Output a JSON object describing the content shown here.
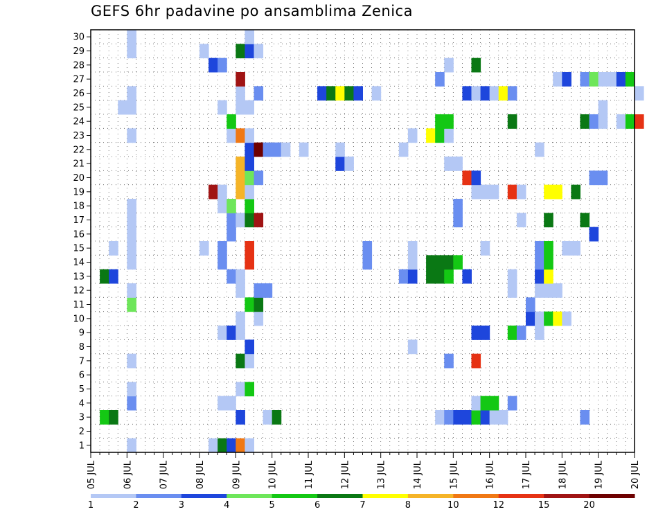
{
  "chart_data": {
    "type": "heatmap",
    "title": "GEFS 6hr padavine po ansamblima Zenica",
    "xlabel": "",
    "ylabel": "",
    "x_tick_labels": [
      "05 JUL",
      "06 JUL",
      "07 JUL",
      "08 JUL",
      "09 JUL",
      "10 JUL",
      "11 JUL",
      "12 JUL",
      "13 JUL",
      "14 JUL",
      "15 JUL",
      "16 JUL",
      "17 JUL",
      "18 JUL",
      "19 JUL",
      "20 JUL"
    ],
    "x_range": [
      "05 JUL 00h",
      "20 JUL 00h"
    ],
    "time_step_hours": 6,
    "y_tick_labels": [
      "1",
      "2",
      "3",
      "4",
      "5",
      "6",
      "7",
      "8",
      "9",
      "10",
      "11",
      "12",
      "13",
      "14",
      "15",
      "16",
      "17",
      "18",
      "19",
      "20",
      "21",
      "22",
      "23",
      "24",
      "25",
      "26",
      "27",
      "28",
      "29",
      "30"
    ],
    "y_range": [
      1,
      30
    ],
    "grid": "dotted",
    "colorbar": {
      "labels": [
        "1",
        "2",
        "3",
        "4",
        "5",
        "6",
        "7",
        "8",
        "10",
        "12",
        "15",
        "20"
      ],
      "bins": [
        {
          "from": 1,
          "to": 2,
          "color": "#b4c8f5"
        },
        {
          "from": 2,
          "to": 3,
          "color": "#6a8ef0"
        },
        {
          "from": 3,
          "to": 4,
          "color": "#1e46dc"
        },
        {
          "from": 4,
          "to": 5,
          "color": "#6ee65a"
        },
        {
          "from": 5,
          "to": 6,
          "color": "#14c814"
        },
        {
          "from": 6,
          "to": 7,
          "color": "#0a7814"
        },
        {
          "from": 7,
          "to": 8,
          "color": "#ffff00"
        },
        {
          "from": 8,
          "to": 10,
          "color": "#f5b428"
        },
        {
          "from": 10,
          "to": 12,
          "color": "#f07814"
        },
        {
          "from": 12,
          "to": 15,
          "color": "#e63214"
        },
        {
          "from": 15,
          "to": 20,
          "color": "#a01414"
        },
        {
          "from": 20,
          "to": null,
          "color": "#6e0000"
        }
      ]
    },
    "cells_note": "member = ensemble member (y), t = 6-hour step index from 05 JUL 00h, c = colour bin index (0 = 1-2 ... 11 = >20)",
    "cells": [
      [
        1,
        4,
        0
      ],
      [
        1,
        13,
        0
      ],
      [
        1,
        14,
        5
      ],
      [
        1,
        15,
        2
      ],
      [
        1,
        16,
        8
      ],
      [
        1,
        17,
        0
      ],
      [
        3,
        1,
        4
      ],
      [
        3,
        2,
        5
      ],
      [
        3,
        16,
        2
      ],
      [
        3,
        19,
        0
      ],
      [
        3,
        20,
        5
      ],
      [
        3,
        38,
        0
      ],
      [
        3,
        39,
        1
      ],
      [
        3,
        40,
        2
      ],
      [
        3,
        41,
        2
      ],
      [
        3,
        42,
        4
      ],
      [
        3,
        43,
        2
      ],
      [
        3,
        44,
        0
      ],
      [
        3,
        45,
        0
      ],
      [
        3,
        54,
        1
      ],
      [
        4,
        4,
        1
      ],
      [
        4,
        14,
        0
      ],
      [
        4,
        15,
        0
      ],
      [
        4,
        42,
        0
      ],
      [
        4,
        43,
        4
      ],
      [
        4,
        44,
        4
      ],
      [
        4,
        46,
        1
      ],
      [
        5,
        4,
        0
      ],
      [
        5,
        16,
        0
      ],
      [
        5,
        17,
        4
      ],
      [
        7,
        4,
        0
      ],
      [
        7,
        16,
        5
      ],
      [
        7,
        17,
        0
      ],
      [
        7,
        39,
        1
      ],
      [
        7,
        42,
        9
      ],
      [
        8,
        17,
        2
      ],
      [
        8,
        35,
        0
      ],
      [
        9,
        14,
        0
      ],
      [
        9,
        15,
        2
      ],
      [
        9,
        16,
        0
      ],
      [
        9,
        42,
        2
      ],
      [
        9,
        43,
        2
      ],
      [
        9,
        46,
        4
      ],
      [
        9,
        47,
        1
      ],
      [
        9,
        49,
        0
      ],
      [
        10,
        16,
        0
      ],
      [
        10,
        18,
        0
      ],
      [
        10,
        48,
        2
      ],
      [
        10,
        49,
        0
      ],
      [
        10,
        50,
        4
      ],
      [
        10,
        51,
        6
      ],
      [
        10,
        52,
        0
      ],
      [
        11,
        4,
        3
      ],
      [
        11,
        17,
        4
      ],
      [
        11,
        18,
        5
      ],
      [
        11,
        48,
        1
      ],
      [
        12,
        4,
        0
      ],
      [
        12,
        16,
        0
      ],
      [
        12,
        18,
        1
      ],
      [
        12,
        19,
        1
      ],
      [
        12,
        46,
        0
      ],
      [
        12,
        49,
        0
      ],
      [
        12,
        50,
        0
      ],
      [
        12,
        51,
        0
      ],
      [
        13,
        1,
        5
      ],
      [
        13,
        2,
        2
      ],
      [
        13,
        15,
        1
      ],
      [
        13,
        16,
        0
      ],
      [
        13,
        34,
        1
      ],
      [
        13,
        35,
        2
      ],
      [
        13,
        37,
        5
      ],
      [
        13,
        38,
        5
      ],
      [
        13,
        39,
        4
      ],
      [
        13,
        41,
        2
      ],
      [
        13,
        46,
        0
      ],
      [
        13,
        49,
        2
      ],
      [
        13,
        50,
        6
      ],
      [
        14,
        4,
        0
      ],
      [
        14,
        14,
        1
      ],
      [
        14,
        17,
        9
      ],
      [
        14,
        30,
        1
      ],
      [
        14,
        35,
        0
      ],
      [
        14,
        37,
        5
      ],
      [
        14,
        38,
        5
      ],
      [
        14,
        39,
        5
      ],
      [
        14,
        40,
        4
      ],
      [
        14,
        49,
        1
      ],
      [
        14,
        50,
        4
      ],
      [
        15,
        2,
        0
      ],
      [
        15,
        4,
        0
      ],
      [
        15,
        12,
        0
      ],
      [
        15,
        14,
        1
      ],
      [
        15,
        17,
        9
      ],
      [
        15,
        30,
        1
      ],
      [
        15,
        35,
        0
      ],
      [
        15,
        43,
        0
      ],
      [
        15,
        49,
        1
      ],
      [
        15,
        50,
        4
      ],
      [
        15,
        52,
        0
      ],
      [
        15,
        53,
        0
      ],
      [
        16,
        4,
        0
      ],
      [
        16,
        15,
        1
      ],
      [
        16,
        55,
        2
      ],
      [
        17,
        4,
        0
      ],
      [
        17,
        15,
        1
      ],
      [
        17,
        16,
        0
      ],
      [
        17,
        17,
        5
      ],
      [
        17,
        18,
        10
      ],
      [
        17,
        40,
        1
      ],
      [
        17,
        47,
        0
      ],
      [
        17,
        50,
        5
      ],
      [
        17,
        54,
        5
      ],
      [
        18,
        4,
        0
      ],
      [
        18,
        14,
        0
      ],
      [
        18,
        15,
        3
      ],
      [
        18,
        17,
        4
      ],
      [
        18,
        40,
        1
      ],
      [
        19,
        13,
        10
      ],
      [
        19,
        14,
        0
      ],
      [
        19,
        16,
        7
      ],
      [
        19,
        17,
        0
      ],
      [
        19,
        42,
        0
      ],
      [
        19,
        43,
        0
      ],
      [
        19,
        44,
        0
      ],
      [
        19,
        46,
        9
      ],
      [
        19,
        47,
        0
      ],
      [
        19,
        50,
        6
      ],
      [
        19,
        51,
        6
      ],
      [
        19,
        53,
        5
      ],
      [
        20,
        16,
        7
      ],
      [
        20,
        17,
        3
      ],
      [
        20,
        18,
        1
      ],
      [
        20,
        41,
        9
      ],
      [
        20,
        42,
        2
      ],
      [
        20,
        55,
        1
      ],
      [
        20,
        56,
        1
      ],
      [
        21,
        16,
        7
      ],
      [
        21,
        17,
        2
      ],
      [
        21,
        39,
        0
      ],
      [
        21,
        40,
        0
      ],
      [
        21,
        27,
        2
      ],
      [
        21,
        28,
        0
      ],
      [
        22,
        17,
        2
      ],
      [
        22,
        18,
        11
      ],
      [
        22,
        19,
        1
      ],
      [
        22,
        20,
        1
      ],
      [
        22,
        21,
        0
      ],
      [
        22,
        23,
        0
      ],
      [
        22,
        27,
        0
      ],
      [
        22,
        34,
        0
      ],
      [
        22,
        49,
        0
      ],
      [
        23,
        4,
        0
      ],
      [
        23,
        15,
        0
      ],
      [
        23,
        16,
        8
      ],
      [
        23,
        17,
        0
      ],
      [
        23,
        35,
        0
      ],
      [
        23,
        37,
        6
      ],
      [
        23,
        38,
        4
      ],
      [
        23,
        39,
        0
      ],
      [
        24,
        15,
        4
      ],
      [
        24,
        38,
        4
      ],
      [
        24,
        39,
        4
      ],
      [
        24,
        46,
        5
      ],
      [
        24,
        54,
        5
      ],
      [
        24,
        55,
        1
      ],
      [
        24,
        56,
        0
      ],
      [
        24,
        58,
        0
      ],
      [
        24,
        59,
        4
      ],
      [
        24,
        60,
        9
      ],
      [
        25,
        3,
        0
      ],
      [
        25,
        4,
        0
      ],
      [
        25,
        14,
        0
      ],
      [
        25,
        16,
        0
      ],
      [
        25,
        17,
        0
      ],
      [
        25,
        56,
        0
      ],
      [
        26,
        4,
        0
      ],
      [
        26,
        16,
        0
      ],
      [
        26,
        18,
        1
      ],
      [
        26,
        25,
        2
      ],
      [
        26,
        26,
        5
      ],
      [
        26,
        27,
        6
      ],
      [
        26,
        28,
        5
      ],
      [
        26,
        29,
        2
      ],
      [
        26,
        31,
        0
      ],
      [
        26,
        41,
        2
      ],
      [
        26,
        42,
        0
      ],
      [
        26,
        43,
        2
      ],
      [
        26,
        44,
        0
      ],
      [
        26,
        45,
        6
      ],
      [
        26,
        46,
        1
      ],
      [
        26,
        60,
        0
      ],
      [
        27,
        16,
        10
      ],
      [
        27,
        38,
        1
      ],
      [
        27,
        51,
        0
      ],
      [
        27,
        52,
        2
      ],
      [
        27,
        54,
        1
      ],
      [
        27,
        55,
        3
      ],
      [
        27,
        56,
        0
      ],
      [
        27,
        57,
        0
      ],
      [
        27,
        58,
        2
      ],
      [
        27,
        59,
        4
      ],
      [
        28,
        13,
        2
      ],
      [
        28,
        14,
        1
      ],
      [
        28,
        39,
        0
      ],
      [
        28,
        42,
        5
      ],
      [
        29,
        4,
        0
      ],
      [
        29,
        12,
        0
      ],
      [
        29,
        16,
        5
      ],
      [
        29,
        17,
        2
      ],
      [
        29,
        18,
        0
      ],
      [
        30,
        4,
        0
      ],
      [
        30,
        17,
        0
      ]
    ]
  }
}
